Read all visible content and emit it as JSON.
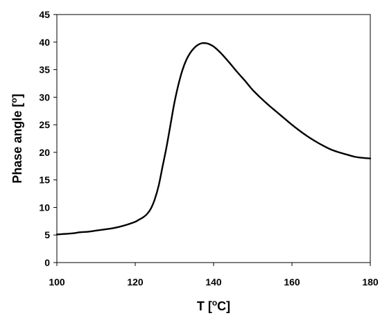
{
  "chart_data": {
    "type": "line",
    "xlabel": {
      "main": "T [",
      "superscript": "o",
      "unit": "C]"
    },
    "ylabel": {
      "main": "Phase angle [",
      "superscript": "o",
      "unit": "]"
    },
    "xlim": [
      100,
      180
    ],
    "ylim": [
      0,
      45
    ],
    "x_ticks": [
      100,
      120,
      140,
      160,
      180
    ],
    "y_ticks": [
      0,
      5,
      10,
      15,
      20,
      25,
      30,
      35,
      40,
      45
    ],
    "grid": false,
    "legend": "none",
    "line_color": "#000000",
    "series": [
      {
        "x": [
          100,
          102,
          104,
          106,
          108,
          110,
          112,
          114,
          116,
          118,
          120,
          121,
          122,
          123,
          124,
          125,
          126,
          127,
          128,
          129,
          130,
          131,
          132,
          133,
          134,
          135,
          136,
          137,
          138,
          139,
          140,
          141,
          142,
          144,
          146,
          148,
          150,
          152,
          154,
          156,
          158,
          160,
          162,
          164,
          166,
          168,
          170,
          172,
          174,
          176,
          178,
          180
        ],
        "y": [
          5.1,
          5.2,
          5.3,
          5.5,
          5.6,
          5.8,
          6.0,
          6.2,
          6.5,
          6.9,
          7.4,
          7.8,
          8.2,
          8.8,
          9.8,
          11.5,
          14.0,
          17.5,
          21.0,
          25.0,
          29.0,
          32.2,
          34.8,
          36.7,
          38.0,
          38.9,
          39.5,
          39.8,
          39.8,
          39.6,
          39.2,
          38.6,
          37.9,
          36.3,
          34.6,
          33.0,
          31.3,
          29.9,
          28.6,
          27.4,
          26.2,
          25.0,
          23.9,
          22.9,
          22.0,
          21.2,
          20.5,
          20.0,
          19.6,
          19.2,
          19.0,
          18.9
        ]
      }
    ]
  }
}
